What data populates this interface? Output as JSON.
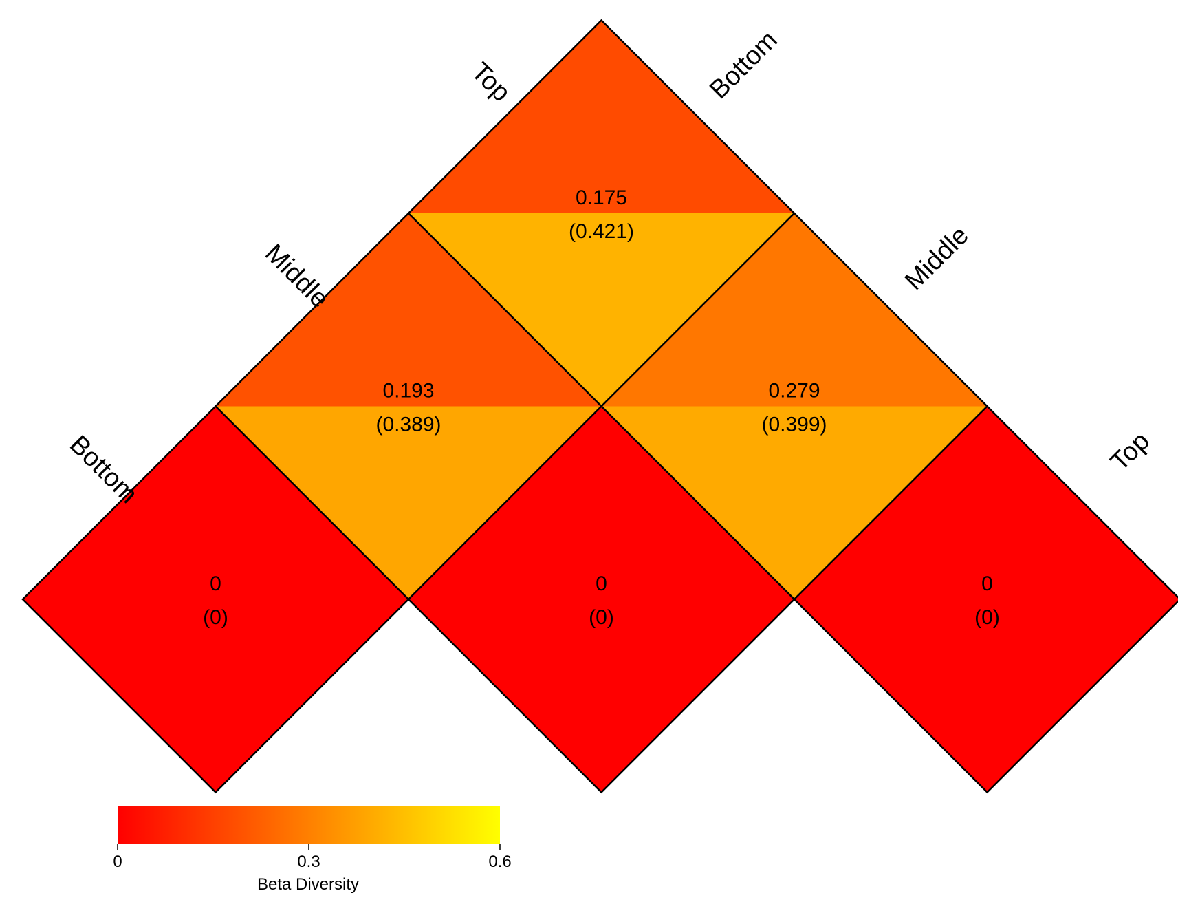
{
  "chart_data": {
    "type": "heatmap",
    "subtype": "triangular-diamond-matrix",
    "row_labels": [
      "Top",
      "Middle",
      "Bottom"
    ],
    "column_labels": [
      "Bottom",
      "Middle",
      "Top"
    ],
    "cells": [
      {
        "row": "Top",
        "col": "Bottom",
        "upper_value": 0.175,
        "lower_value": 0.421,
        "upper_label": "0.175",
        "lower_label": "(0.421)"
      },
      {
        "row": "Middle",
        "col": "Bottom",
        "upper_value": 0.193,
        "lower_value": 0.389,
        "upper_label": "0.193",
        "lower_label": "(0.389)"
      },
      {
        "row": "Top",
        "col": "Middle",
        "upper_value": 0.279,
        "lower_value": 0.399,
        "upper_label": "0.279",
        "lower_label": "(0.399)"
      },
      {
        "row": "Bottom",
        "col": "Bottom",
        "upper_value": 0,
        "lower_value": 0,
        "upper_label": "0",
        "lower_label": "(0)"
      },
      {
        "row": "Middle",
        "col": "Middle",
        "upper_value": 0,
        "lower_value": 0,
        "upper_label": "0",
        "lower_label": "(0)"
      },
      {
        "row": "Top",
        "col": "Top",
        "upper_value": 0,
        "lower_value": 0,
        "upper_label": "0",
        "lower_label": "(0)"
      }
    ],
    "colorbar": {
      "title": "Beta Diversity",
      "min": 0,
      "max": 0.6,
      "ticks": [
        0,
        0.3,
        0.6
      ],
      "tick_labels": [
        "0",
        "0.3",
        "0.6"
      ],
      "palette": [
        "#ff0000",
        "#ff8000",
        "#ffff00"
      ]
    },
    "legend_position": "bottom-left"
  }
}
